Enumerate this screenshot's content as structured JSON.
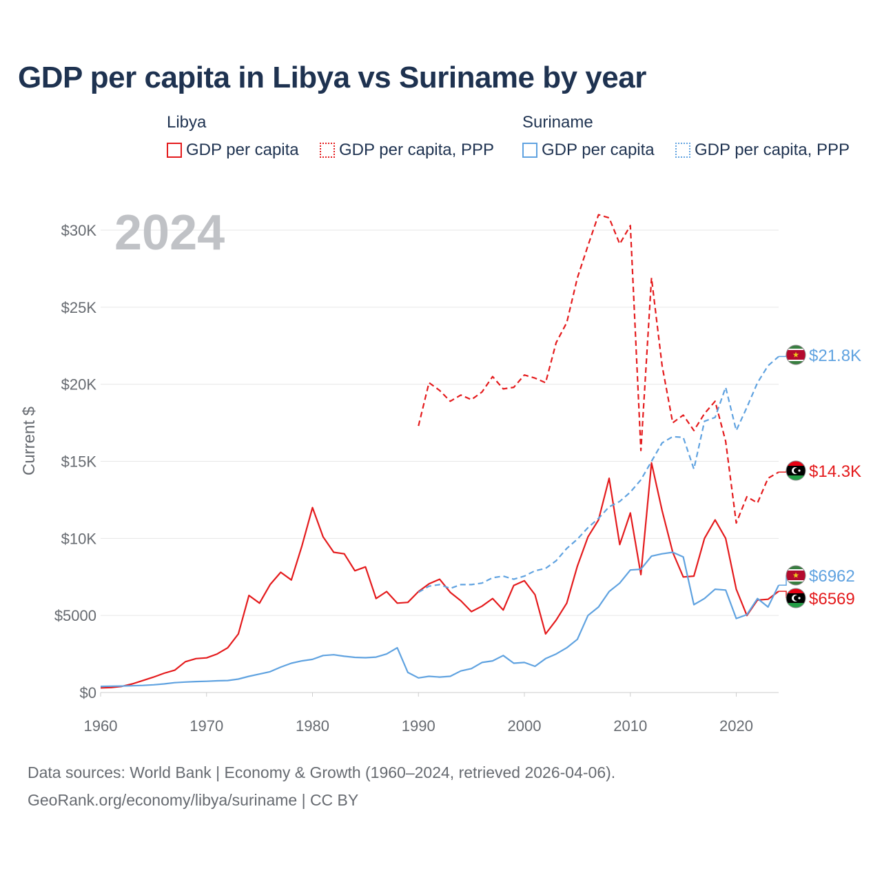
{
  "chart_data": {
    "type": "line",
    "title": "GDP per capita in Libya vs Suriname by year",
    "year_label": "2024",
    "ylabel": "Current $",
    "xlim": [
      1960,
      2024
    ],
    "ylim": [
      0,
      31000
    ],
    "x_ticks": [
      1960,
      1970,
      1980,
      1990,
      2000,
      2010,
      2020
    ],
    "y_ticks": [
      {
        "value": 0,
        "label": "$0"
      },
      {
        "value": 5000,
        "label": "$5000"
      },
      {
        "value": 10000,
        "label": "$10K"
      },
      {
        "value": 15000,
        "label": "$15K"
      },
      {
        "value": 20000,
        "label": "$20K"
      },
      {
        "value": 25000,
        "label": "$25K"
      },
      {
        "value": 30000,
        "label": "$30K"
      }
    ],
    "legend": {
      "groups": [
        {
          "name": "Libya",
          "items": [
            "GDP per capita",
            "GDP per capita, PPP"
          ]
        },
        {
          "name": "Suriname",
          "items": [
            "GDP per capita",
            "GDP per capita, PPP"
          ]
        }
      ]
    },
    "series": [
      {
        "name": "Libya GDP per capita",
        "country": "Libya",
        "style": "solid",
        "color": "#e41a1c",
        "end_label": "$6569",
        "start_year": 1960,
        "values": [
          300,
          320,
          400,
          560,
          780,
          1000,
          1250,
          1450,
          2000,
          2200,
          2250,
          2500,
          2900,
          3800,
          6300,
          5800,
          7000,
          7800,
          7300,
          9500,
          12000,
          10100,
          9100,
          9000,
          7900,
          8150,
          6100,
          6550,
          5800,
          5850,
          6550,
          7050,
          7350,
          6500,
          5950,
          5250,
          5600,
          6100,
          5350,
          6950,
          7250,
          6350,
          3800,
          4700,
          5800,
          8200,
          10100,
          11200,
          13900,
          9600,
          11650,
          7650,
          14900,
          11800,
          9100,
          7500,
          7550,
          10000,
          11200,
          10000,
          6700,
          5000,
          6000,
          6050,
          6569
        ]
      },
      {
        "name": "Libya GDP per capita, PPP",
        "country": "Libya",
        "style": "dashed",
        "color": "#e41a1c",
        "end_label": "$14.3K",
        "start_year": 1990,
        "values": [
          17300,
          20100,
          19600,
          18900,
          19300,
          19000,
          19500,
          20500,
          19700,
          19800,
          20600,
          20400,
          20100,
          22700,
          24000,
          26900,
          29000,
          31000,
          30800,
          29100,
          30300,
          15700,
          26900,
          21200,
          17500,
          18000,
          17000,
          18100,
          18900,
          16300,
          11000,
          12700,
          12300,
          13900,
          14300
        ]
      },
      {
        "name": "Suriname GDP per capita",
        "country": "Suriname",
        "style": "solid",
        "color": "#5fa2e0",
        "end_label": "$6962",
        "start_year": 1960,
        "values": [
          400,
          410,
          420,
          440,
          460,
          500,
          560,
          640,
          680,
          710,
          730,
          760,
          780,
          870,
          1050,
          1200,
          1350,
          1650,
          1900,
          2050,
          2150,
          2400,
          2450,
          2350,
          2280,
          2260,
          2300,
          2500,
          2900,
          1300,
          950,
          1050,
          1000,
          1050,
          1400,
          1550,
          1950,
          2050,
          2400,
          1900,
          1950,
          1700,
          2200,
          2500,
          2900,
          3450,
          5000,
          5550,
          6550,
          7100,
          7950,
          8000,
          8850,
          9000,
          9100,
          8800,
          5700,
          6100,
          6700,
          6650,
          4800,
          5050,
          6100,
          5550,
          6962
        ]
      },
      {
        "name": "Suriname GDP per capita, PPP",
        "country": "Suriname",
        "style": "dashed",
        "color": "#5fa2e0",
        "end_label": "$21.8K",
        "start_year": 1990,
        "values": [
          6500,
          6900,
          7000,
          6750,
          7000,
          7000,
          7100,
          7450,
          7550,
          7350,
          7550,
          7900,
          8050,
          8550,
          9350,
          9950,
          10700,
          11300,
          12050,
          12400,
          13000,
          13800,
          15000,
          16200,
          16600,
          16550,
          14500,
          17600,
          17850,
          19800,
          17000,
          18500,
          20100,
          21200,
          21800
        ]
      }
    ]
  },
  "footer": {
    "line1": "Data sources: World Bank | Economy & Growth (1960–2024, retrieved 2026-04-06).",
    "line2": "GeoRank.org/economy/libya/suriname | CC BY"
  }
}
